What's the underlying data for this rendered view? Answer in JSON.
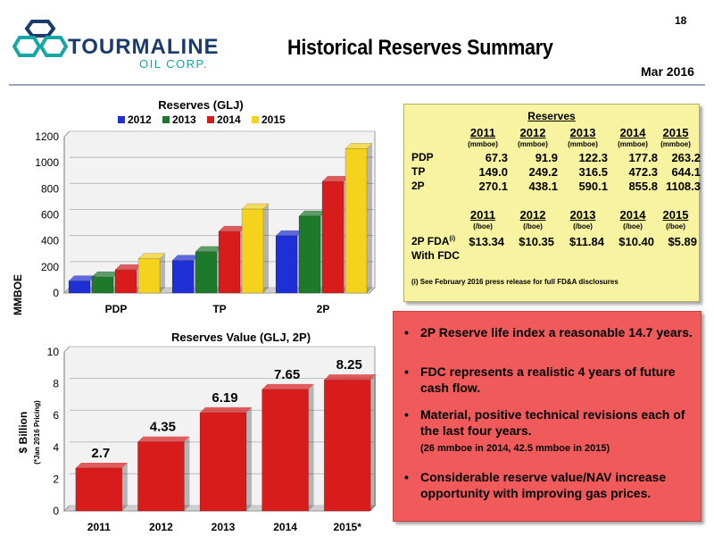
{
  "page_number": "18",
  "logo": {
    "name": "TOURMALINE",
    "sub": "OIL CORP.",
    "colors": {
      "teal": "#16a6a3",
      "navy": "#1b3b6f"
    }
  },
  "title": "Historical Reserves Summary",
  "date": "Mar 2016",
  "chart_data": [
    {
      "type": "bar",
      "title": "Reserves (GLJ)",
      "ylabel": "MMBOE",
      "xlabel": "",
      "categories": [
        "PDP",
        "TP",
        "2P"
      ],
      "ylim": [
        0,
        1200
      ],
      "yticks": [
        0,
        200,
        400,
        600,
        800,
        1000,
        1200
      ],
      "grid": true,
      "legend": "top",
      "series": [
        {
          "name": "2012",
          "color": "#1f2fd6",
          "values": [
            91.9,
            249.2,
            438.1
          ]
        },
        {
          "name": "2013",
          "color": "#1d7a2a",
          "values": [
            122.3,
            316.5,
            590.1
          ]
        },
        {
          "name": "2014",
          "color": "#d81c1c",
          "values": [
            177.8,
            472.3,
            855.8
          ]
        },
        {
          "name": "2015",
          "color": "#f5d21b",
          "values": [
            263.2,
            644.1,
            1108.3
          ]
        }
      ]
    },
    {
      "type": "bar",
      "title": "Reserves Value (GLJ, 2P)",
      "ylabel": "$ Billion",
      "ylabel_note": "(*Jan 2016 Pricing)",
      "xlabel": "",
      "categories": [
        "2011",
        "2012",
        "2013",
        "2014",
        "2015*"
      ],
      "values": [
        2.7,
        4.35,
        6.19,
        7.65,
        8.25
      ],
      "labels": [
        "2.7",
        "4.35",
        "6.19",
        "7.65",
        "8.25"
      ],
      "ylim": [
        0,
        10
      ],
      "yticks": [
        0,
        2,
        4,
        6,
        8,
        10
      ],
      "grid": true,
      "color": "#d81c1c"
    }
  ],
  "reserves_table": {
    "title": "Reserves",
    "years": [
      "2011",
      "2012",
      "2013",
      "2014",
      "2015"
    ],
    "unit": "(mmboe)",
    "rows": [
      {
        "label": "PDP",
        "values": [
          "67.3",
          "91.9",
          "122.3",
          "177.8",
          "263.2"
        ]
      },
      {
        "label": "TP",
        "values": [
          "149.0",
          "249.2",
          "316.5",
          "472.3",
          "644.1"
        ]
      },
      {
        "label": "2P",
        "values": [
          "270.1",
          "438.1",
          "590.1",
          "855.8",
          "1108.3"
        ]
      }
    ],
    "fda_unit": "(/boe)",
    "fda_label": "2P FDA",
    "fda_sup": "(i)",
    "fda_label2": "With FDC",
    "fda_values": [
      "$13.34",
      "$10.35",
      "$11.84",
      "$10.40",
      "$5.89"
    ],
    "footnote": "(i)  See February 2016 press release for full FD&A disclosures"
  },
  "bullets": [
    {
      "text": "2P Reserve life index a reasonable 14.7 years."
    },
    {
      "text": "FDC represents a realistic 4 years of future cash flow."
    },
    {
      "text": "Material, positive technical revisions each of the last four years.",
      "sub": "(26 mmboe in 2014, 42.5 mmboe in 2015)"
    },
    {
      "text": "Considerable reserve value/NAV increase opportunity with improving gas prices."
    }
  ]
}
